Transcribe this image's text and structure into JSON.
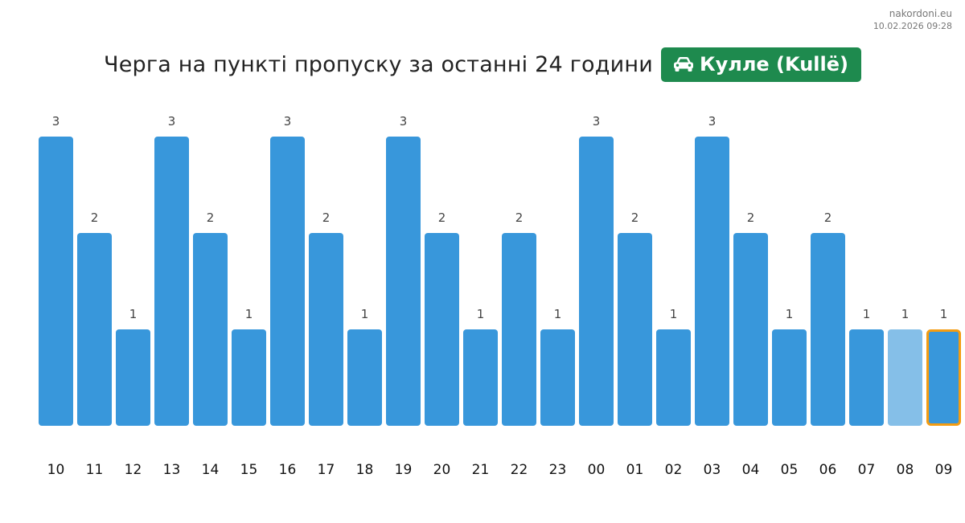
{
  "source": {
    "site": "nakordoni.eu",
    "timestamp": "10.02.2026 09:28"
  },
  "title": "Черга на пункті пропуску за останні 24 години",
  "badge": {
    "label": "Кулле (Kullë)",
    "icon": "car-icon",
    "color": "#1e8a4e"
  },
  "colors": {
    "bar": "#3897db",
    "bar_partial": "#85bfe8",
    "current_outline": "#f39c12",
    "value_label": "#444444",
    "tick_label": "#111111"
  },
  "chart_data": {
    "type": "bar",
    "title": "Черга на пункті пропуску за останні 24 години",
    "categories": [
      "10",
      "11",
      "12",
      "13",
      "14",
      "15",
      "16",
      "17",
      "18",
      "19",
      "20",
      "21",
      "22",
      "23",
      "00",
      "01",
      "02",
      "03",
      "04",
      "05",
      "06",
      "07",
      "08",
      "09"
    ],
    "values": [
      3,
      2,
      1,
      3,
      2,
      1,
      3,
      2,
      1,
      3,
      2,
      1,
      2,
      1,
      3,
      2,
      1,
      3,
      2,
      1,
      2,
      1,
      1,
      1
    ],
    "data_labels": [
      "3",
      "2",
      "1",
      "3",
      "2",
      "1",
      "3",
      "2",
      "1",
      "3",
      "2",
      "1",
      "2",
      "1",
      "3",
      "2",
      "1",
      "3",
      "2",
      "1",
      "2",
      "1",
      "1",
      "1"
    ],
    "ylim": [
      0,
      3
    ],
    "grid": false,
    "legend": "none",
    "partial_category": "08",
    "highlighted_category": "09"
  }
}
